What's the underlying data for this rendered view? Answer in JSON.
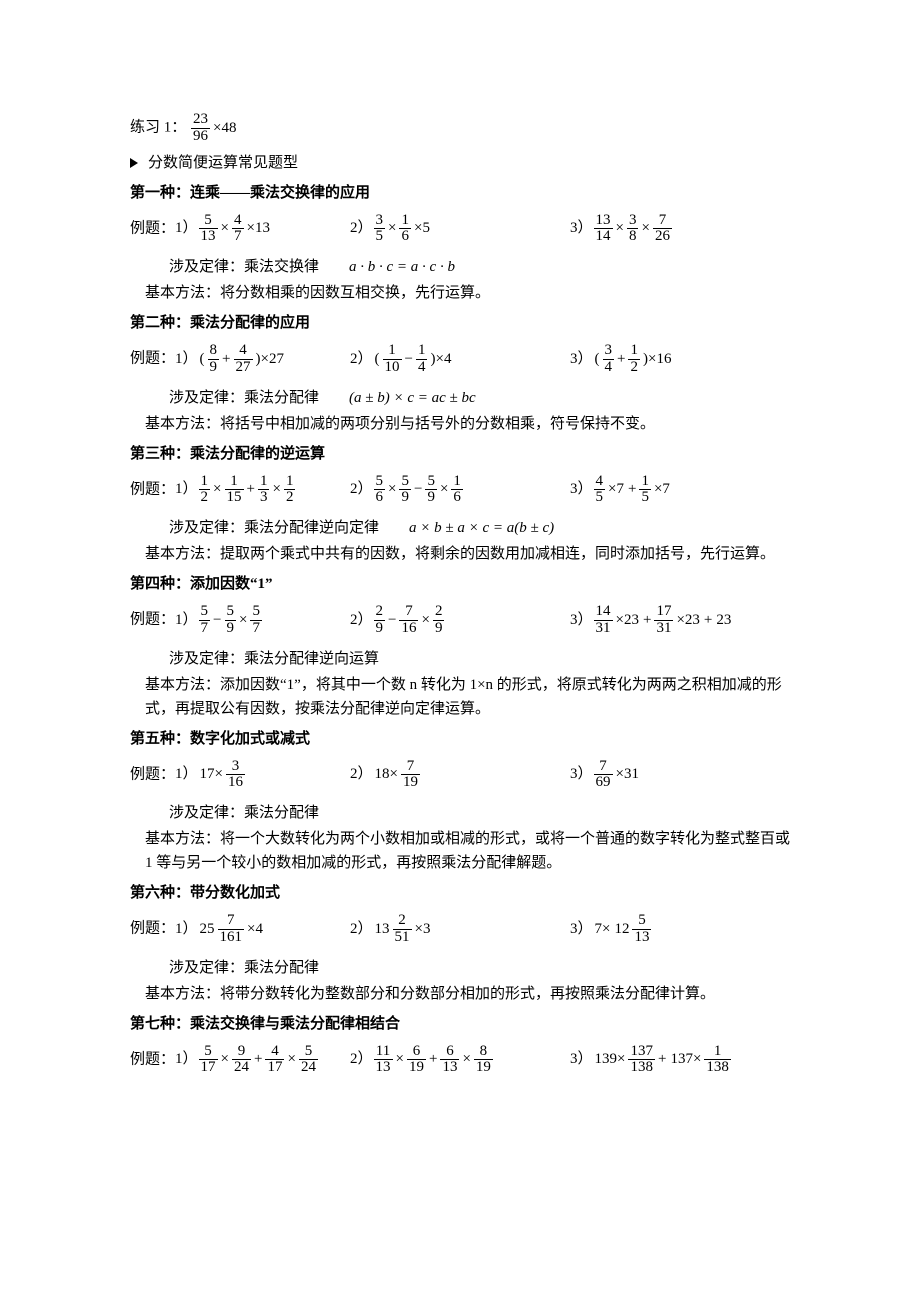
{
  "practice1": {
    "label": "练习 1：",
    "expr": {
      "n": "23",
      "d": "96",
      "mult": "×48"
    }
  },
  "bullet": "分数简便运算常见题型",
  "sections": [
    {
      "title": "第一种：连乘——乘法交换律的应用",
      "ex_label": "例题：",
      "items": [
        {
          "no": "1）",
          "t": "frac3",
          "f1": {
            "n": "5",
            "d": "13"
          },
          "f2": {
            "n": "4",
            "d": "7"
          },
          "tail": "×13"
        },
        {
          "no": "2）",
          "t": "frac3",
          "f1": {
            "n": "3",
            "d": "5"
          },
          "f2": {
            "n": "1",
            "d": "6"
          },
          "tail": "×5"
        },
        {
          "no": "3）",
          "t": "frac3b",
          "f1": {
            "n": "13",
            "d": "14"
          },
          "f2": {
            "n": "3",
            "d": "8"
          },
          "f3": {
            "n": "7",
            "d": "26"
          }
        }
      ],
      "law_label": "涉及定律：乘法交换律",
      "law_formula": "a · b · c = a · c · b",
      "method": "基本方法：将分数相乘的因数互相交换，先行运算。"
    },
    {
      "title": "第二种：乘法分配律的应用",
      "ex_label": "例题：",
      "items": [
        {
          "no": "1）",
          "t": "paren2",
          "f1": {
            "n": "8",
            "d": "9"
          },
          "op": "+",
          "f2": {
            "n": "4",
            "d": "27"
          },
          "tail": "×27"
        },
        {
          "no": "2）",
          "t": "paren2",
          "f1": {
            "n": "1",
            "d": "10"
          },
          "op": "−",
          "f2": {
            "n": "1",
            "d": "4"
          },
          "tail": "×4"
        },
        {
          "no": "3）",
          "t": "paren2",
          "f1": {
            "n": "3",
            "d": "4"
          },
          "op": "+",
          "f2": {
            "n": "1",
            "d": "2"
          },
          "tail": "×16"
        }
      ],
      "law_label": "涉及定律：乘法分配律",
      "law_formula": "(a ± b) × c = ac ± bc",
      "method": "基本方法：将括号中相加减的两项分别与括号外的分数相乘，符号保持不变。"
    },
    {
      "title": "第三种：乘法分配律的逆运算",
      "ex_label": "例题：",
      "items": [
        {
          "no": "1）",
          "t": "four",
          "f1": {
            "n": "1",
            "d": "2"
          },
          "op1": "×",
          "f2": {
            "n": "1",
            "d": "15"
          },
          "op2": "+",
          "f3": {
            "n": "1",
            "d": "3"
          },
          "op3": "×",
          "f4": {
            "n": "1",
            "d": "2"
          }
        },
        {
          "no": "2）",
          "t": "four",
          "f1": {
            "n": "5",
            "d": "6"
          },
          "op1": "×",
          "f2": {
            "n": "5",
            "d": "9"
          },
          "op2": "−",
          "f3": {
            "n": "5",
            "d": "9"
          },
          "op3": "×",
          "f4": {
            "n": "1",
            "d": "6"
          }
        },
        {
          "no": "3）",
          "t": "twoint",
          "f1": {
            "n": "4",
            "d": "5"
          },
          "int1": "×7",
          "op": "+",
          "f2": {
            "n": "1",
            "d": "5"
          },
          "int2": "×7"
        }
      ],
      "law_label": "涉及定律：乘法分配律逆向定律",
      "law_formula": "a × b ± a × c = a(b ± c)",
      "method": "基本方法：提取两个乘式中共有的因数，将剩余的因数用加减相连，同时添加括号，先行运算。"
    },
    {
      "title": "第四种：添加因数“1”",
      "ex_label": "例题：",
      "items": [
        {
          "no": "1）",
          "t": "three",
          "f1": {
            "n": "5",
            "d": "7"
          },
          "op1": "−",
          "f2": {
            "n": "5",
            "d": "9"
          },
          "op2": "×",
          "f3": {
            "n": "5",
            "d": "7"
          }
        },
        {
          "no": "2）",
          "t": "three",
          "f1": {
            "n": "2",
            "d": "9"
          },
          "op1": "−",
          "f2": {
            "n": "7",
            "d": "16"
          },
          "op2": "×",
          "f3": {
            "n": "2",
            "d": "9"
          }
        },
        {
          "no": "3）",
          "t": "special4",
          "f1": {
            "n": "14",
            "d": "31"
          },
          "a": "×23",
          "op1": "+",
          "f2": {
            "n": "17",
            "d": "31"
          },
          "b": "×23",
          "op2": "+",
          "c": "23"
        }
      ],
      "law_label": "涉及定律：乘法分配律逆向运算",
      "law_formula": "",
      "method": "基本方法：添加因数“1”，将其中一个数 n 转化为 1×n 的形式，将原式转化为两两之积相加减的形式，再提取公有因数，按乘法分配律逆向定律运算。"
    },
    {
      "title": "第五种：数字化加式或减式",
      "ex_label": "例题：",
      "items": [
        {
          "no": "1）",
          "t": "intfrac",
          "int": "17×",
          "f": {
            "n": "3",
            "d": "16"
          }
        },
        {
          "no": "2）",
          "t": "intfrac",
          "int": "18×",
          "f": {
            "n": "7",
            "d": "19"
          }
        },
        {
          "no": "3）",
          "t": "fracint",
          "f": {
            "n": "7",
            "d": "69"
          },
          "int": "×31"
        }
      ],
      "law_label": "涉及定律：乘法分配律",
      "law_formula": "",
      "method": "基本方法：将一个大数转化为两个小数相加或相减的形式，或将一个普通的数字转化为整式整百或 1 等与另一个较小的数相加减的形式，再按照乘法分配律解题。"
    },
    {
      "title": "第六种：带分数化加式",
      "ex_label": "例题：",
      "items": [
        {
          "no": "1）",
          "t": "mixed",
          "whole": "25",
          "f": {
            "n": "7",
            "d": "161"
          },
          "tail": "×4"
        },
        {
          "no": "2）",
          "t": "mixed",
          "whole": "13",
          "f": {
            "n": "2",
            "d": "51"
          },
          "tail": "×3"
        },
        {
          "no": "3）",
          "t": "mixedR",
          "lead": "7×",
          "whole": "12",
          "f": {
            "n": "5",
            "d": "13"
          }
        }
      ],
      "law_label": "涉及定律：乘法分配律",
      "law_formula": "",
      "method": "基本方法：将带分数转化为整数部分和分数部分相加的形式，再按照乘法分配律计算。"
    },
    {
      "title": "第七种：乘法交换律与乘法分配律相结合",
      "ex_label": "例题：",
      "items": [
        {
          "no": "1）",
          "t": "four",
          "f1": {
            "n": "5",
            "d": "17"
          },
          "op1": "×",
          "f2": {
            "n": "9",
            "d": "24"
          },
          "op2": "+",
          "f3": {
            "n": "4",
            "d": "17"
          },
          "op3": "×",
          "f4": {
            "n": "5",
            "d": "24"
          }
        },
        {
          "no": "2）",
          "t": "four",
          "f1": {
            "n": "11",
            "d": "13"
          },
          "op1": "×",
          "f2": {
            "n": "6",
            "d": "19"
          },
          "op2": "+",
          "f3": {
            "n": "6",
            "d": "13"
          },
          "op3": "×",
          "f4": {
            "n": "8",
            "d": "19"
          }
        },
        {
          "no": "3）",
          "t": "s7c",
          "a": "139×",
          "f1": {
            "n": "137",
            "d": "138"
          },
          "op": "+",
          "b": "137×",
          "f2": {
            "n": "1",
            "d": "138"
          }
        }
      ]
    }
  ]
}
